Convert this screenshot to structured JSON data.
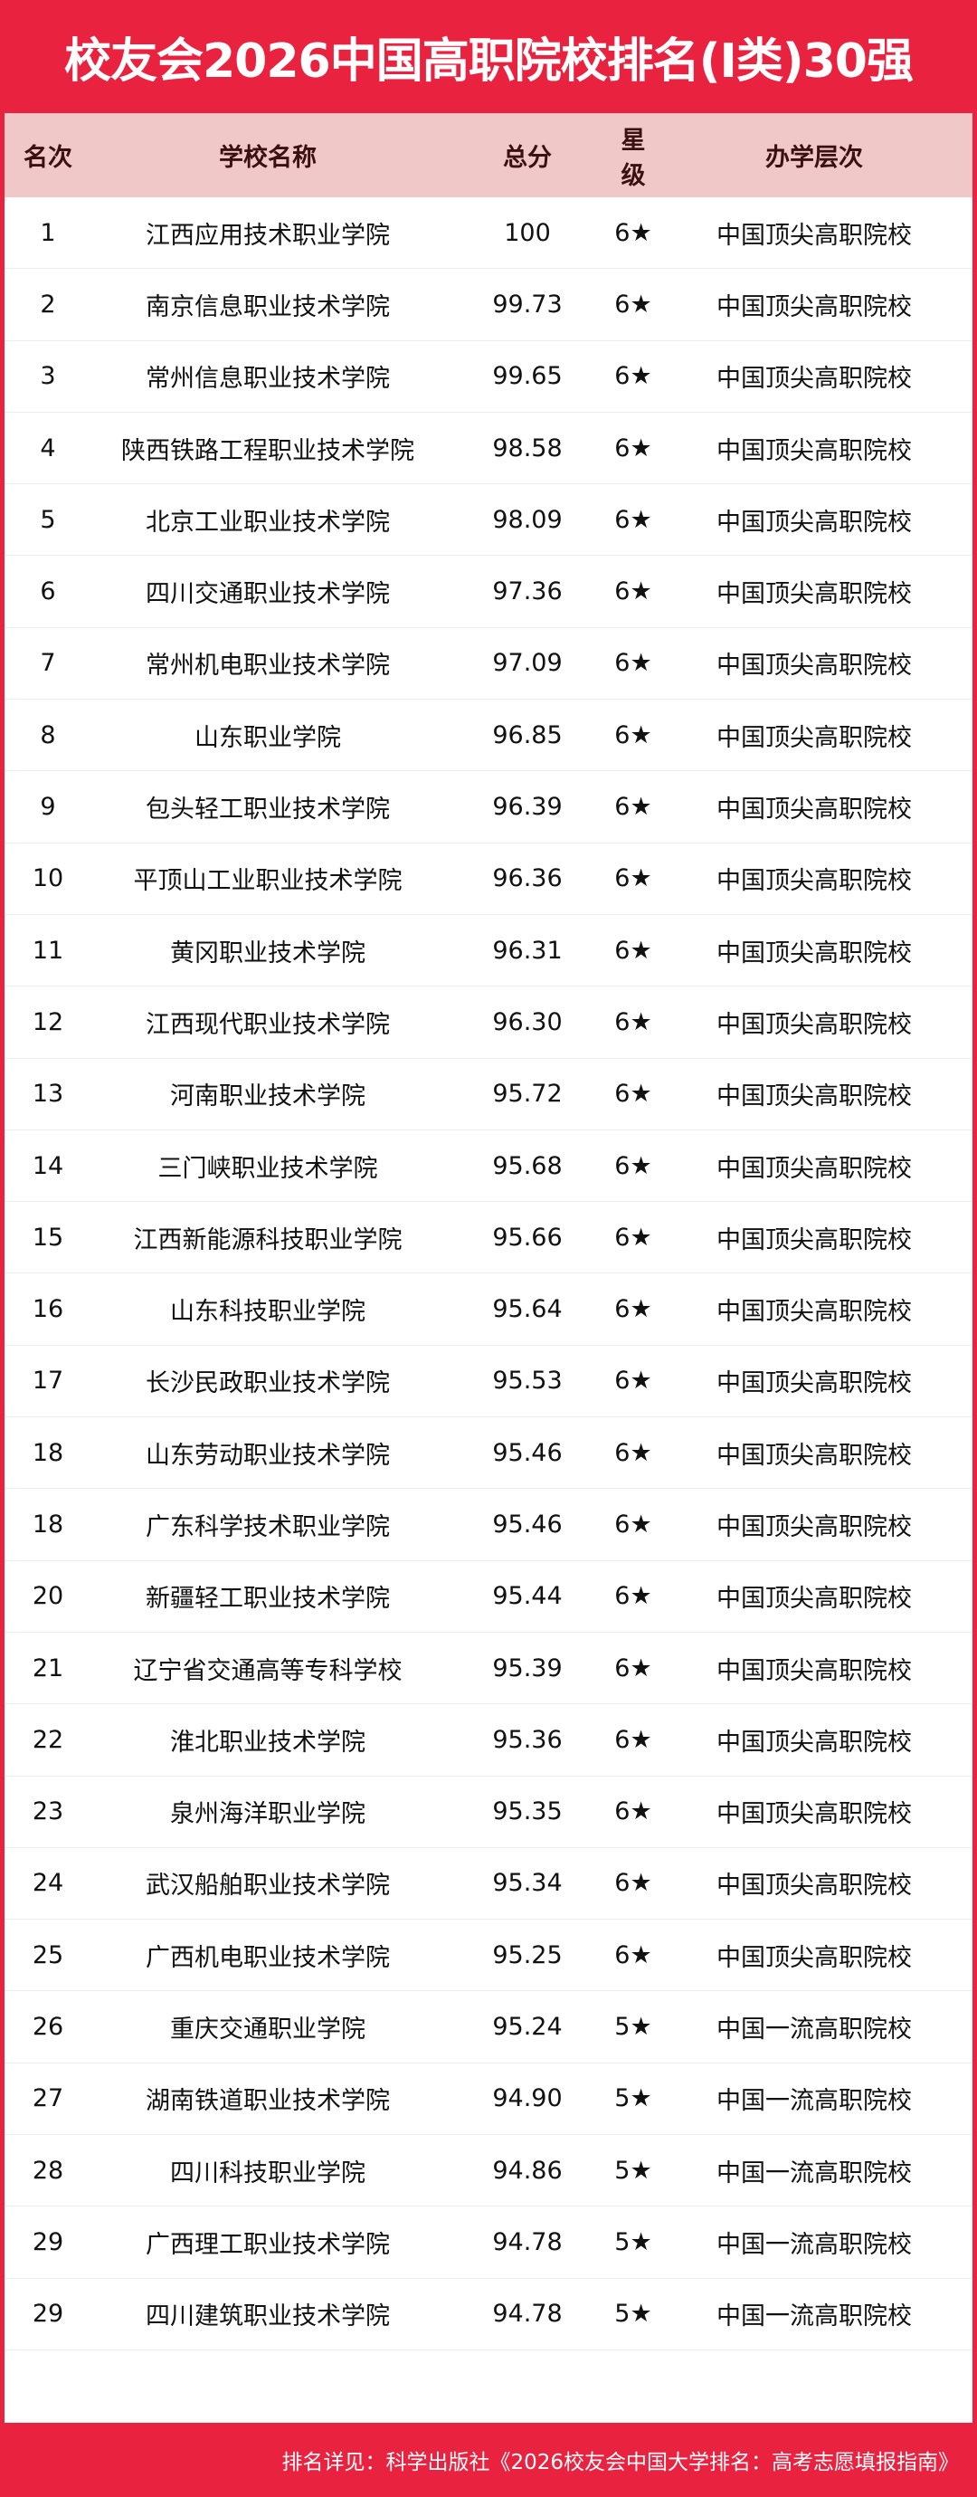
{
  "title": "校友会2026中国高职院校排名(I类)30强",
  "columns": [
    "名次",
    "学校名称",
    "总分",
    "星级",
    "办学层次"
  ],
  "rows": [
    [
      "1",
      "江西应用技术职业学院",
      "100",
      "6★",
      "中国顶尖高职院校"
    ],
    [
      "2",
      "南京信息职业技术学院",
      "99.73",
      "6★",
      "中国顶尖高职院校"
    ],
    [
      "3",
      "常州信息职业技术学院",
      "99.65",
      "6★",
      "中国顶尖高职院校"
    ],
    [
      "4",
      "陕西铁路工程职业技术学院",
      "98.58",
      "6★",
      "中国顶尖高职院校"
    ],
    [
      "5",
      "北京工业职业技术学院",
      "98.09",
      "6★",
      "中国顶尖高职院校"
    ],
    [
      "6",
      "四川交通职业技术学院",
      "97.36",
      "6★",
      "中国顶尖高职院校"
    ],
    [
      "7",
      "常州机电职业技术学院",
      "97.09",
      "6★",
      "中国顶尖高职院校"
    ],
    [
      "8",
      "山东职业学院",
      "96.85",
      "6★",
      "中国顶尖高职院校"
    ],
    [
      "9",
      "包头轻工职业技术学院",
      "96.39",
      "6★",
      "中国顶尖高职院校"
    ],
    [
      "10",
      "平顶山工业职业技术学院",
      "96.36",
      "6★",
      "中国顶尖高职院校"
    ],
    [
      "11",
      "黄冈职业技术学院",
      "96.31",
      "6★",
      "中国顶尖高职院校"
    ],
    [
      "12",
      "江西现代职业技术学院",
      "96.30",
      "6★",
      "中国顶尖高职院校"
    ],
    [
      "13",
      "河南职业技术学院",
      "95.72",
      "6★",
      "中国顶尖高职院校"
    ],
    [
      "14",
      "三门峡职业技术学院",
      "95.68",
      "6★",
      "中国顶尖高职院校"
    ],
    [
      "15",
      "江西新能源科技职业学院",
      "95.66",
      "6★",
      "中国顶尖高职院校"
    ],
    [
      "16",
      "山东科技职业学院",
      "95.64",
      "6★",
      "中国顶尖高职院校"
    ],
    [
      "17",
      "长沙民政职业技术学院",
      "95.53",
      "6★",
      "中国顶尖高职院校"
    ],
    [
      "18",
      "山东劳动职业技术学院",
      "95.46",
      "6★",
      "中国顶尖高职院校"
    ],
    [
      "18",
      "广东科学技术职业学院",
      "95.46",
      "6★",
      "中国顶尖高职院校"
    ],
    [
      "20",
      "新疆轻工职业技术学院",
      "95.44",
      "6★",
      "中国顶尖高职院校"
    ],
    [
      "21",
      "辽宁省交通高等专科学校",
      "95.39",
      "6★",
      "中国顶尖高职院校"
    ],
    [
      "22",
      "淮北职业技术学院",
      "95.36",
      "6★",
      "中国顶尖高职院校"
    ],
    [
      "23",
      "泉州海洋职业学院",
      "95.35",
      "6★",
      "中国顶尖高职院校"
    ],
    [
      "24",
      "武汉船舶职业技术学院",
      "95.34",
      "6★",
      "中国顶尖高职院校"
    ],
    [
      "25",
      "广西机电职业技术学院",
      "95.25",
      "6★",
      "中国顶尖高职院校"
    ],
    [
      "26",
      "重庆交通职业学院",
      "95.24",
      "5★",
      "中国一流高职院校"
    ],
    [
      "27",
      "湖南铁道职业技术学院",
      "94.90",
      "5★",
      "中国一流高职院校"
    ],
    [
      "28",
      "四川科技职业学院",
      "94.86",
      "5★",
      "中国一流高职院校"
    ],
    [
      "29",
      "广西理工职业技术学院",
      "94.78",
      "5★",
      "中国一流高职院校"
    ],
    [
      "29",
      "四川建筑职业技术学院",
      "94.78",
      "5★",
      "中国一流高职院校"
    ]
  ],
  "footer": "排名详见：科学出版社《2026校友会中国大学排名：高考志愿填报指南》",
  "colors": {
    "brand_red": "#e8223f",
    "header_pink": "#f0c8c8"
  }
}
